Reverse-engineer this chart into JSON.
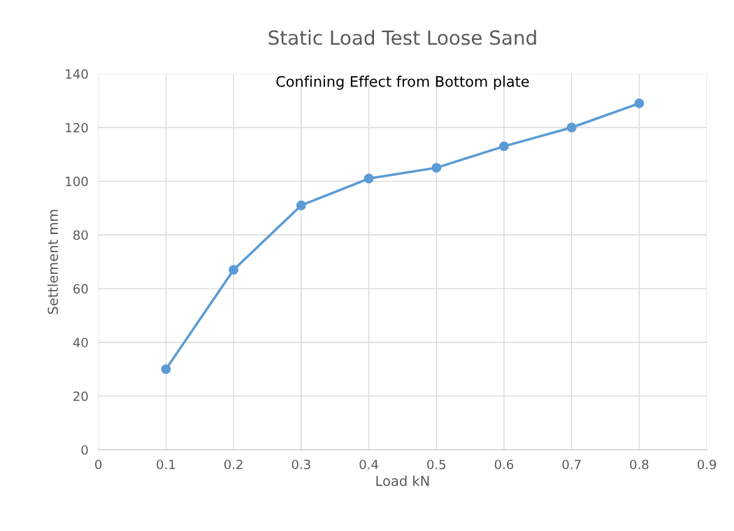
{
  "chart_data": {
    "type": "line",
    "title": "Static Load Test Loose Sand",
    "xlabel": "Load kN",
    "ylabel": "Settlement mm",
    "annotations": [
      "Confining Effect from Bottom plate"
    ],
    "x": [
      0.1,
      0.2,
      0.3,
      0.4,
      0.5,
      0.6,
      0.7,
      0.8
    ],
    "series": [
      {
        "color": "#5b9bd5",
        "values": [
          30,
          67,
          91,
          101,
          105,
          113,
          120,
          129
        ]
      }
    ],
    "xlim": [
      0,
      0.9
    ],
    "xticks": [
      0,
      0.1,
      0.2,
      0.3,
      0.4,
      0.5,
      0.6,
      0.7,
      0.8,
      0.9
    ],
    "ylim": [
      0,
      140
    ],
    "yticks": [
      0,
      20,
      40,
      60,
      80,
      100,
      120,
      140
    ],
    "grid": true,
    "marker": "circle",
    "line_style": "solid"
  }
}
